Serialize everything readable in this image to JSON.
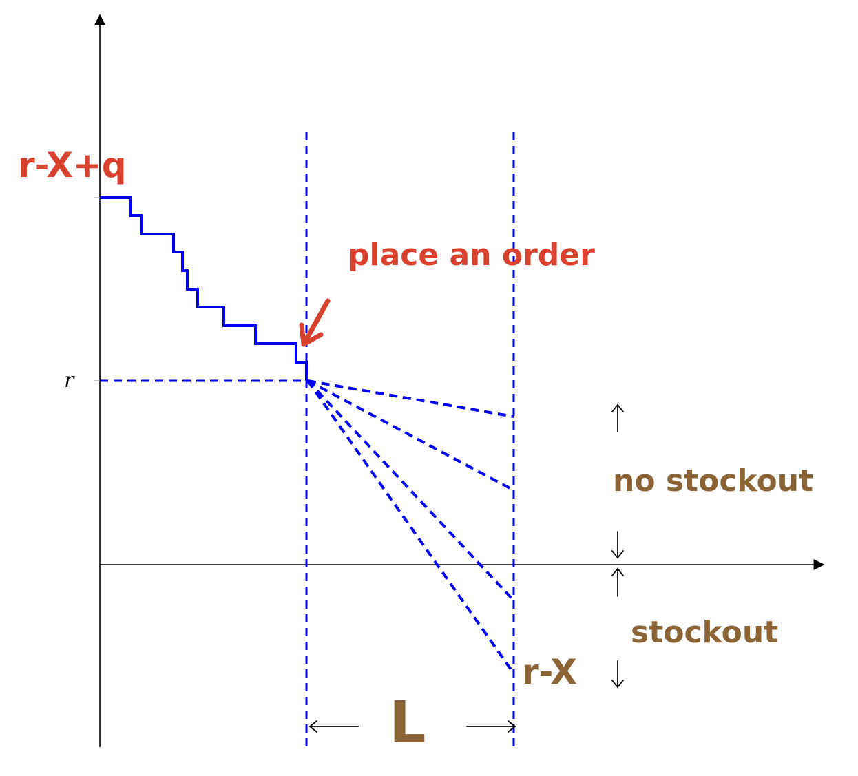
{
  "colors": {
    "axis": "#000000",
    "path": "#0000ee",
    "red_annotation": "#d9412f",
    "brown_annotation": "#8b6436"
  },
  "labels": {
    "r_tick": "r",
    "top_level": "r-X+q",
    "place_order": "place an order",
    "no_stockout": "no stockout",
    "stockout": "stockout",
    "r_minus_x": "r-X",
    "lead_time": "L"
  },
  "icons": {
    "order_arrow": "red-hand-drawn-arrow-icon",
    "up_arrow": "up-arrow-icon",
    "down_arrow": "down-arrow-icon",
    "left_arrow": "left-arrow-icon",
    "right_arrow": "right-arrow-icon"
  }
}
